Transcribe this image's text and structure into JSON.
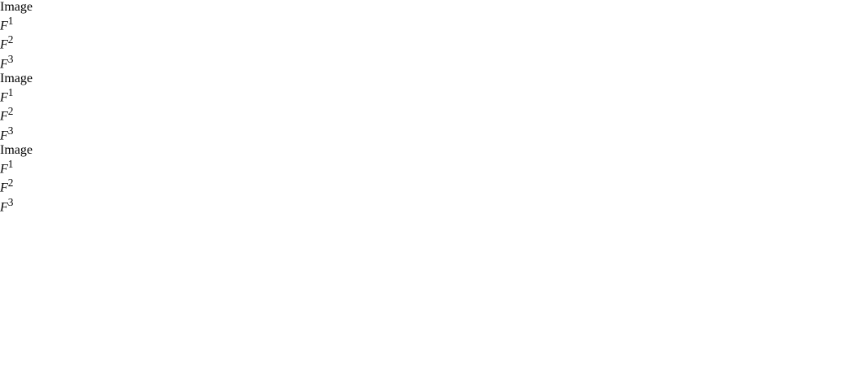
{
  "panels": [
    {
      "headers": [
        {
          "text": "Image"
        },
        {
          "base": "F",
          "sup": "1"
        },
        {
          "base": "F",
          "sup": "2"
        },
        {
          "base": "F",
          "sup": "3"
        }
      ]
    },
    {
      "headers": [
        {
          "text": "Image"
        },
        {
          "base": "F",
          "sup": "1"
        },
        {
          "base": "F",
          "sup": "2"
        },
        {
          "base": "F",
          "sup": "3"
        }
      ]
    },
    {
      "headers": [
        {
          "text": "Image"
        },
        {
          "base": "F",
          "sup": "1"
        },
        {
          "base": "F",
          "sup": "2"
        },
        {
          "base": "F",
          "sup": "3"
        }
      ]
    }
  ]
}
